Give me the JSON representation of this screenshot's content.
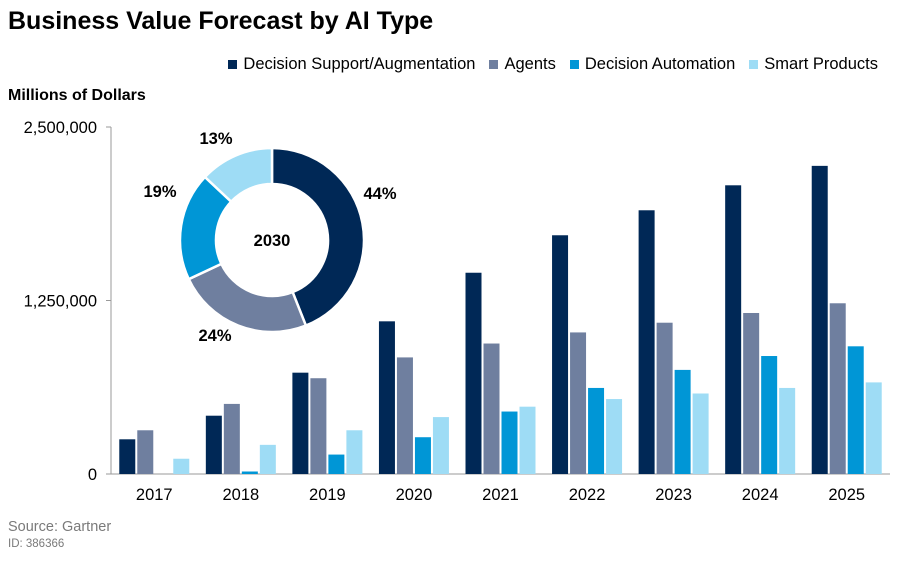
{
  "title": "Business Value Forecast by AI Type",
  "ylabel": "Millions of Dollars",
  "source": "Source: Gartner",
  "doc_id": "ID: 386366",
  "colors": {
    "decision_support": "#002856",
    "agents": "#6f7f9f",
    "decision_automation": "#0096d6",
    "smart_products": "#9edcf5"
  },
  "chart_data": [
    {
      "type": "bar",
      "categories": [
        "2017",
        "2018",
        "2019",
        "2020",
        "2021",
        "2022",
        "2023",
        "2024",
        "2025"
      ],
      "ylim": [
        0,
        2500000
      ],
      "yticks": [
        "0",
        "1,250,000",
        "2,500,000"
      ],
      "ytick_values": [
        0,
        1250000,
        2500000
      ],
      "grid": false,
      "legend": "top-right",
      "series": [
        {
          "name": "Decision Support/Augmentation",
          "color": "#002856",
          "values": [
            250000,
            420000,
            730000,
            1100000,
            1450000,
            1720000,
            1900000,
            2080000,
            2220000
          ]
        },
        {
          "name": "Agents",
          "color": "#6f7f9f",
          "values": [
            315000,
            505000,
            690000,
            840000,
            940000,
            1020000,
            1090000,
            1160000,
            1230000
          ]
        },
        {
          "name": "Decision Automation",
          "color": "#0096d6",
          "values": [
            0,
            18000,
            140000,
            265000,
            450000,
            620000,
            750000,
            850000,
            920000
          ]
        },
        {
          "name": "Smart Products",
          "color": "#9edcf5",
          "values": [
            110000,
            210000,
            315000,
            410000,
            485000,
            540000,
            580000,
            620000,
            660000
          ]
        }
      ]
    },
    {
      "type": "pie",
      "center_label": "2030",
      "slices": [
        {
          "label": "44%",
          "value": 44,
          "color": "#002856"
        },
        {
          "label": "24%",
          "value": 24,
          "color": "#6f7f9f"
        },
        {
          "label": "19%",
          "value": 19,
          "color": "#0096d6"
        },
        {
          "label": "13%",
          "value": 13,
          "color": "#9edcf5"
        }
      ]
    }
  ]
}
